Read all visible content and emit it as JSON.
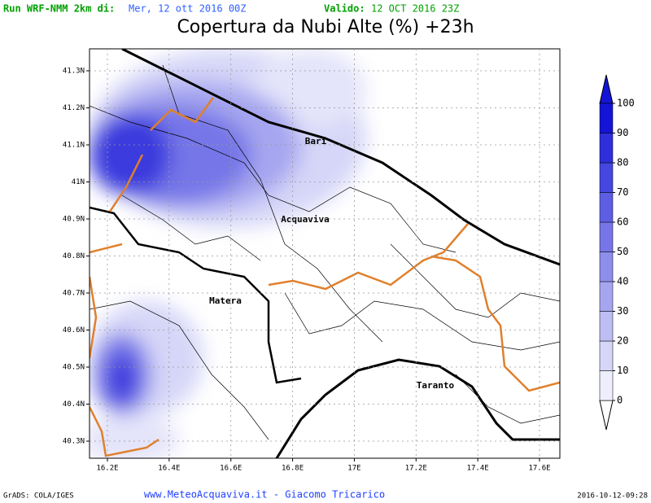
{
  "header": {
    "run_label": "Run WRF-NMM 2km di:",
    "run_date": "Mer, 12 ott 2016 00Z",
    "valid_label": "Valido:",
    "valid_date": "12 OCT 2016 23Z"
  },
  "title": "Copertura da Nubi Alte (%) +23h",
  "map": {
    "lat_ticks": [
      {
        "value": 41.3,
        "label": "41.3N"
      },
      {
        "value": 41.2,
        "label": "41.2N"
      },
      {
        "value": 41.1,
        "label": "41.1N"
      },
      {
        "value": 41,
        "label": "41N"
      },
      {
        "value": 40.9,
        "label": "40.9N"
      },
      {
        "value": 40.8,
        "label": "40.8N"
      },
      {
        "value": 40.7,
        "label": "40.7N"
      },
      {
        "value": 40.6,
        "label": "40.6N"
      },
      {
        "value": 40.5,
        "label": "40.5N"
      },
      {
        "value": 40.4,
        "label": "40.4N"
      },
      {
        "value": 40.3,
        "label": "40.3N"
      }
    ],
    "lon_ticks": [
      {
        "value": 16.2,
        "label": "16.2E"
      },
      {
        "value": 16.4,
        "label": "16.4E"
      },
      {
        "value": 16.6,
        "label": "16.6E"
      },
      {
        "value": 16.8,
        "label": "16.8E"
      },
      {
        "value": 17,
        "label": "17E"
      },
      {
        "value": 17.2,
        "label": "17.2E"
      },
      {
        "value": 17.4,
        "label": "17.4E"
      },
      {
        "value": 17.6,
        "label": "17.6E"
      }
    ],
    "cities": [
      "Bari",
      "Acquaviva",
      "Matera",
      "Taranto"
    ]
  },
  "colorbar": {
    "levels": [
      0,
      10,
      20,
      30,
      40,
      50,
      60,
      70,
      80,
      90,
      100
    ],
    "colors": [
      "#eeeefc",
      "#d6d6f8",
      "#bebef4",
      "#a6a6f0",
      "#8e8eec",
      "#7676e8",
      "#5e5ee4",
      "#4646e0",
      "#2e2edc",
      "#1414d6"
    ]
  },
  "footer": {
    "left": "GrADS: COLA/IGES",
    "center": "www.MeteoAcquaviva.it - Giacomo Tricarico",
    "right": "2016-10-12-09:28"
  }
}
